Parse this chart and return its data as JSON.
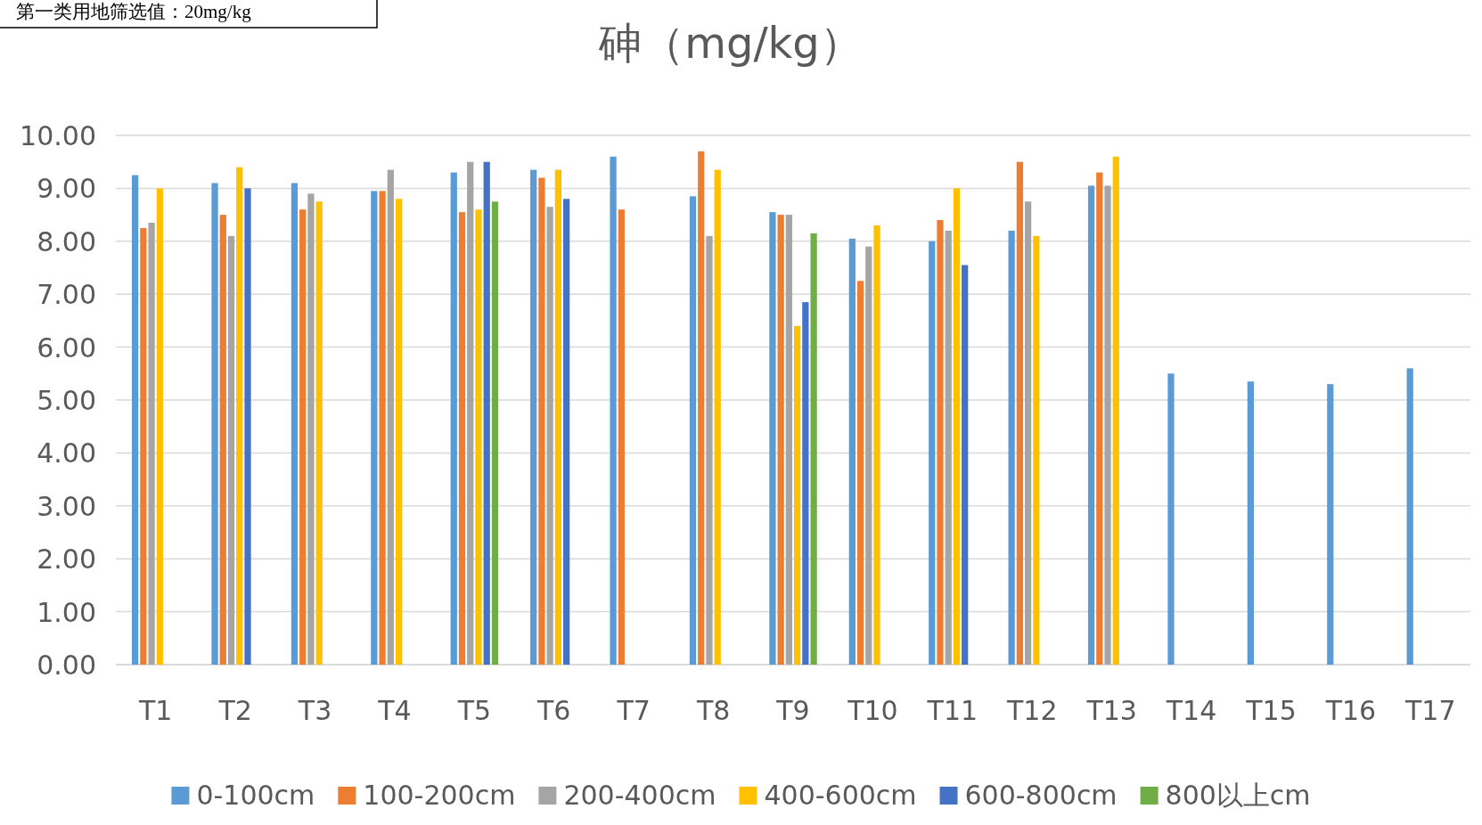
{
  "chart_data": {
    "type": "bar",
    "title": "砷（mg/kg）",
    "annotations": [
      "第一类用地筛选值：20mg/kg"
    ],
    "categories": [
      "T1",
      "T2",
      "T3",
      "T4",
      "T5",
      "T6",
      "T7",
      "T8",
      "T9",
      "T10",
      "T11",
      "T12",
      "T13",
      "T14",
      "T15",
      "T16",
      "T17"
    ],
    "series": [
      {
        "name": "0-100cm",
        "color": "#5b9bd5",
        "values": [
          9.25,
          9.1,
          9.1,
          8.95,
          9.3,
          9.35,
          9.6,
          8.85,
          8.55,
          8.05,
          8.0,
          8.2,
          9.05,
          5.5,
          5.35,
          5.3,
          5.6
        ]
      },
      {
        "name": "100-200cm",
        "color": "#ed7d31",
        "values": [
          8.25,
          8.5,
          8.6,
          8.95,
          8.55,
          9.2,
          8.6,
          9.7,
          8.5,
          7.25,
          8.4,
          9.5,
          9.3,
          null,
          null,
          null,
          null
        ]
      },
      {
        "name": "200-400cm",
        "color": "#a5a5a5",
        "values": [
          8.35,
          8.1,
          8.9,
          9.35,
          9.5,
          8.65,
          null,
          8.1,
          8.5,
          7.9,
          8.2,
          8.75,
          9.05,
          null,
          null,
          null,
          null
        ]
      },
      {
        "name": "400-600cm",
        "color": "#ffc000",
        "values": [
          9.0,
          9.4,
          8.75,
          8.8,
          8.6,
          9.35,
          null,
          9.35,
          6.4,
          8.3,
          9.0,
          8.1,
          9.6,
          null,
          null,
          null,
          null
        ]
      },
      {
        "name": "600-800cm",
        "color": "#4472c4",
        "values": [
          null,
          9.0,
          null,
          null,
          9.5,
          8.8,
          null,
          null,
          6.85,
          null,
          7.55,
          null,
          null,
          null,
          null,
          null,
          null
        ]
      },
      {
        "name": "800以上cm",
        "color": "#70ad47",
        "values": [
          null,
          null,
          null,
          null,
          8.75,
          null,
          null,
          null,
          8.15,
          null,
          null,
          null,
          null,
          null,
          null,
          null,
          null
        ]
      }
    ],
    "ylim": [
      0,
      10
    ],
    "yticks": [
      {
        "value": 0,
        "label": "0.00"
      },
      {
        "value": 1,
        "label": "1.00"
      },
      {
        "value": 2,
        "label": "2.00"
      },
      {
        "value": 3,
        "label": "3.00"
      },
      {
        "value": 4,
        "label": "4.00"
      },
      {
        "value": 5,
        "label": "5.00"
      },
      {
        "value": 6,
        "label": "6.00"
      },
      {
        "value": 7,
        "label": "7.00"
      },
      {
        "value": 8,
        "label": "8.00"
      },
      {
        "value": 9,
        "label": "9.00"
      },
      {
        "value": 10,
        "label": "10.00"
      }
    ],
    "grid": "y",
    "legend": "bottom"
  }
}
